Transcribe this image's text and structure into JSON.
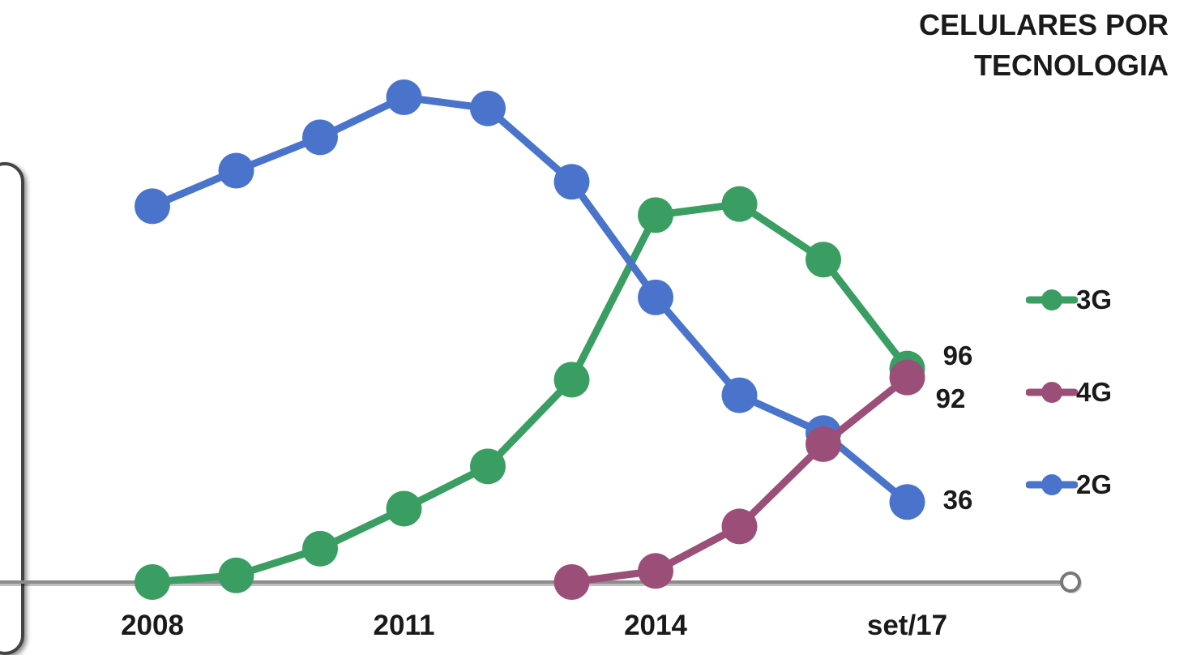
{
  "title_lines": [
    "CELULARES POR",
    "TECNOLOGIA"
  ],
  "legend": [
    {
      "label": "3G",
      "series": "3G"
    },
    {
      "label": "4G",
      "series": "4G"
    },
    {
      "label": "2G",
      "series": "2G"
    }
  ],
  "colors": {
    "3G": "#3a9e63",
    "4G": "#9b4f78",
    "2G": "#4a74cc",
    "axis": "#8c8c8c"
  },
  "chart_data": {
    "type": "line",
    "x": [
      "2008",
      "2009",
      "2010",
      "2011",
      "2012",
      "2013",
      "2014",
      "2015",
      "2016",
      "set/17"
    ],
    "x_tick_labels": [
      "2008",
      "2011",
      "2014",
      "set/17"
    ],
    "series": [
      {
        "name": "2G",
        "values": [
          169,
          185,
          200,
          218,
          213,
          180,
          128,
          84,
          67,
          36
        ],
        "end_label": "36"
      },
      {
        "name": "3G",
        "values": [
          0,
          3,
          15,
          33,
          52,
          91,
          165,
          170,
          145,
          96
        ],
        "end_label": "96"
      },
      {
        "name": "4G",
        "values": [
          null,
          null,
          null,
          null,
          null,
          0,
          5,
          25,
          62,
          92
        ],
        "end_label": "92"
      }
    ],
    "ylim": [
      0,
      220
    ],
    "grid": false,
    "legend_position": "right"
  }
}
